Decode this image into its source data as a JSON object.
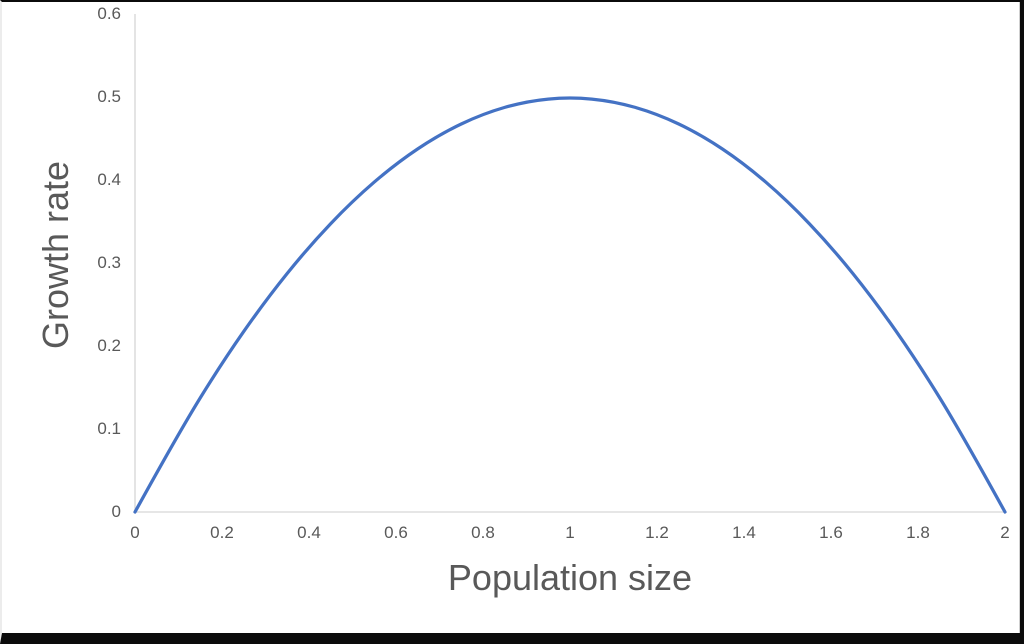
{
  "chart_data": {
    "type": "line",
    "title": "",
    "xlabel": "Population size",
    "ylabel": "Growth rate",
    "xlim": [
      0,
      2
    ],
    "ylim": [
      0,
      0.6
    ],
    "x_ticks": [
      "0",
      "0.2",
      "0.4",
      "0.6",
      "0.8",
      "1",
      "1.2",
      "1.4",
      "1.6",
      "1.8",
      "2"
    ],
    "y_ticks": [
      "0",
      "0.1",
      "0.2",
      "0.3",
      "0.4",
      "0.5",
      "0.6"
    ],
    "grid": false,
    "legend": false,
    "line_color": "#4472C4",
    "axis_color": "#D6D6D6",
    "text_color": "#595959",
    "frame_color": "#0b0b0b",
    "series": [
      {
        "name": "Growth rate",
        "x": [
          0,
          0.1,
          0.2,
          0.3,
          0.4,
          0.5,
          0.6,
          0.7,
          0.8,
          0.9,
          1.0,
          1.1,
          1.2,
          1.3,
          1.4,
          1.5,
          1.6,
          1.7,
          1.8,
          1.9,
          2.0
        ],
        "y": [
          0,
          0.095,
          0.18,
          0.255,
          0.32,
          0.375,
          0.42,
          0.455,
          0.48,
          0.495,
          0.5,
          0.495,
          0.48,
          0.455,
          0.42,
          0.375,
          0.32,
          0.255,
          0.18,
          0.095,
          0
        ]
      }
    ]
  }
}
